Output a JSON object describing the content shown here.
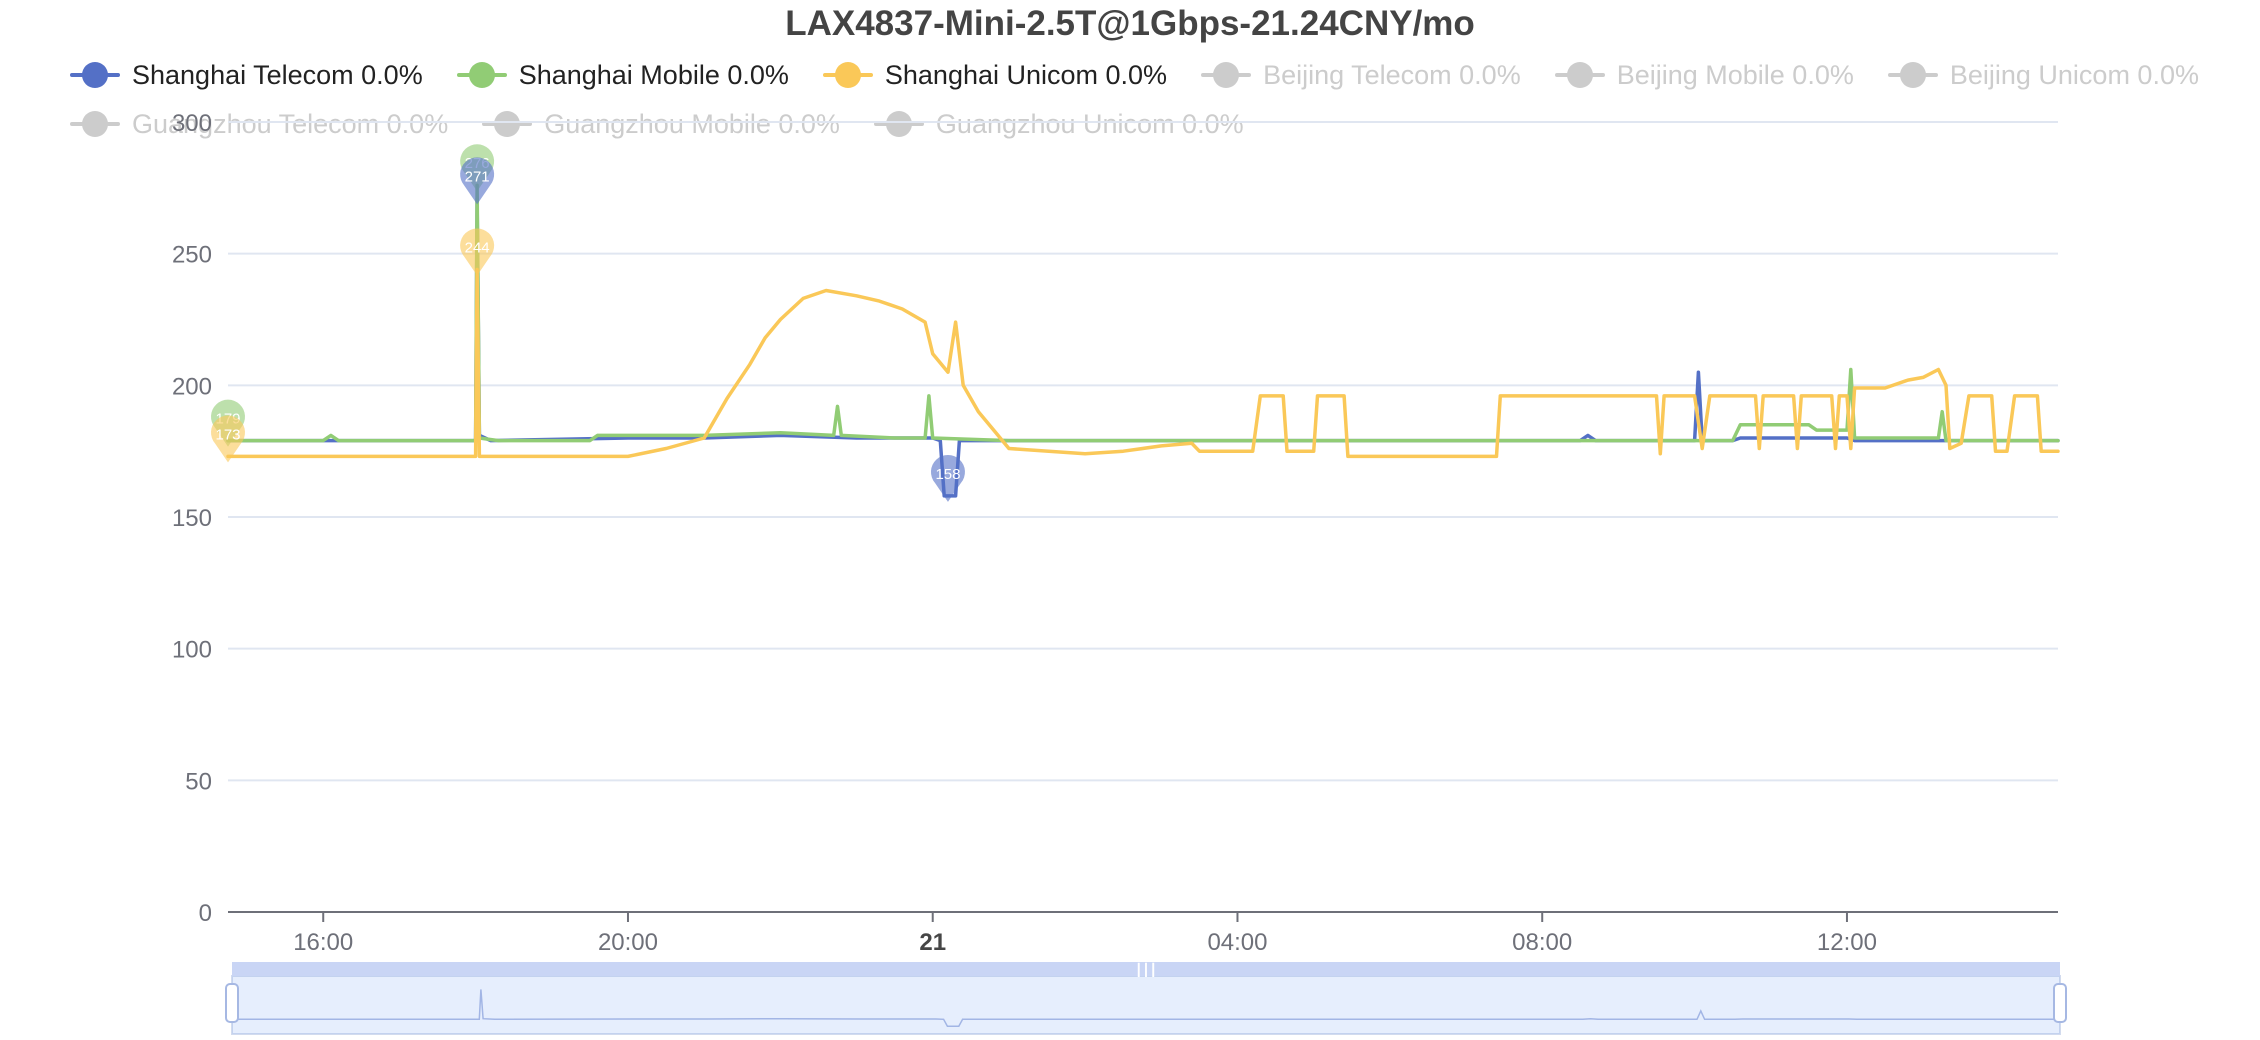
{
  "chart_data": {
    "type": "line",
    "title": "LAX4837-Mini-2.5T@1Gbps-21.24CNY/mo",
    "xlabel": "",
    "ylabel": "",
    "ylim": [
      0,
      300
    ],
    "y_ticks": [
      0,
      50,
      100,
      150,
      200,
      250,
      300
    ],
    "y_tick_labels": [
      "0",
      "50",
      "100",
      "150",
      "200",
      "250",
      "300"
    ],
    "x_range_hours": [
      14.75,
      38.77
    ],
    "x_ticks": [
      {
        "label": "16:00",
        "hour": 16,
        "bold": false
      },
      {
        "label": "20:00",
        "hour": 20,
        "bold": false
      },
      {
        "label": "21",
        "hour": 24,
        "bold": true
      },
      {
        "label": "04:00",
        "hour": 28,
        "bold": false
      },
      {
        "label": "08:00",
        "hour": 32,
        "bold": false
      },
      {
        "label": "12:00",
        "hour": 36,
        "bold": false
      }
    ],
    "grid": true,
    "legend_position": "top",
    "series": [
      {
        "name": "Shanghai Telecom 0.0%",
        "color": "#5470c6",
        "visible": true,
        "points": [
          [
            14.75,
            179
          ],
          [
            16.5,
            179
          ],
          [
            18.0,
            179
          ],
          [
            18.02,
            271
          ],
          [
            18.05,
            181
          ],
          [
            18.2,
            179
          ],
          [
            20.0,
            180
          ],
          [
            21.0,
            180
          ],
          [
            22.0,
            181
          ],
          [
            23.0,
            180
          ],
          [
            24.0,
            180
          ],
          [
            24.1,
            179
          ],
          [
            24.15,
            158
          ],
          [
            24.3,
            158
          ],
          [
            24.35,
            179
          ],
          [
            25.0,
            179
          ],
          [
            27.0,
            179
          ],
          [
            30.0,
            179
          ],
          [
            32.5,
            179
          ],
          [
            32.6,
            181
          ],
          [
            32.7,
            179
          ],
          [
            34.0,
            179
          ],
          [
            34.05,
            205
          ],
          [
            34.1,
            179
          ],
          [
            34.5,
            179
          ],
          [
            34.6,
            180
          ],
          [
            36.0,
            180
          ],
          [
            36.1,
            179
          ],
          [
            38.77,
            179
          ]
        ]
      },
      {
        "name": "Shanghai Mobile 0.0%",
        "color": "#91cc75",
        "visible": true,
        "points": [
          [
            14.75,
            179
          ],
          [
            16.0,
            179
          ],
          [
            16.1,
            181
          ],
          [
            16.2,
            179
          ],
          [
            18.0,
            179
          ],
          [
            18.02,
            276
          ],
          [
            18.05,
            180
          ],
          [
            18.3,
            179
          ],
          [
            19.5,
            179
          ],
          [
            19.6,
            181
          ],
          [
            21.0,
            181
          ],
          [
            22.0,
            182
          ],
          [
            22.7,
            181
          ],
          [
            22.75,
            192
          ],
          [
            22.8,
            181
          ],
          [
            23.5,
            180
          ],
          [
            23.9,
            180
          ],
          [
            23.95,
            196
          ],
          [
            24.0,
            180
          ],
          [
            25.0,
            179
          ],
          [
            28.0,
            179
          ],
          [
            30.0,
            179
          ],
          [
            32.0,
            179
          ],
          [
            34.5,
            179
          ],
          [
            34.6,
            185
          ],
          [
            35.5,
            185
          ],
          [
            35.6,
            183
          ],
          [
            36.0,
            183
          ],
          [
            36.05,
            206
          ],
          [
            36.1,
            180
          ],
          [
            37.2,
            180
          ],
          [
            37.25,
            190
          ],
          [
            37.3,
            179
          ],
          [
            38.77,
            179
          ]
        ]
      },
      {
        "name": "Shanghai Unicom 0.0%",
        "color": "#fac858",
        "visible": true,
        "points": [
          [
            14.75,
            173
          ],
          [
            18.0,
            173
          ],
          [
            18.02,
            244
          ],
          [
            18.05,
            173
          ],
          [
            20.0,
            173
          ],
          [
            20.5,
            176
          ],
          [
            21.0,
            180
          ],
          [
            21.3,
            195
          ],
          [
            21.6,
            208
          ],
          [
            21.8,
            218
          ],
          [
            22.0,
            225
          ],
          [
            22.3,
            233
          ],
          [
            22.6,
            236
          ],
          [
            23.0,
            234
          ],
          [
            23.3,
            232
          ],
          [
            23.6,
            229
          ],
          [
            23.9,
            224
          ],
          [
            24.0,
            212
          ],
          [
            24.2,
            205
          ],
          [
            24.3,
            224
          ],
          [
            24.4,
            200
          ],
          [
            24.6,
            190
          ],
          [
            24.8,
            183
          ],
          [
            25.0,
            176
          ],
          [
            26.0,
            174
          ],
          [
            26.5,
            175
          ],
          [
            27.0,
            177
          ],
          [
            27.4,
            178
          ],
          [
            27.5,
            175
          ],
          [
            28.2,
            175
          ],
          [
            28.3,
            196
          ],
          [
            28.6,
            196
          ],
          [
            28.65,
            175
          ],
          [
            29.0,
            175
          ],
          [
            29.05,
            196
          ],
          [
            29.4,
            196
          ],
          [
            29.45,
            173
          ],
          [
            31.4,
            173
          ],
          [
            31.45,
            196
          ],
          [
            33.5,
            196
          ],
          [
            33.55,
            174
          ],
          [
            33.6,
            196
          ],
          [
            34.0,
            196
          ],
          [
            34.1,
            176
          ],
          [
            34.2,
            196
          ],
          [
            34.8,
            196
          ],
          [
            34.85,
            176
          ],
          [
            34.9,
            196
          ],
          [
            35.3,
            196
          ],
          [
            35.35,
            176
          ],
          [
            35.4,
            196
          ],
          [
            35.8,
            196
          ],
          [
            35.85,
            176
          ],
          [
            35.9,
            196
          ],
          [
            36.0,
            196
          ],
          [
            36.05,
            176
          ],
          [
            36.1,
            199
          ],
          [
            36.5,
            199
          ],
          [
            36.8,
            202
          ],
          [
            37.0,
            203
          ],
          [
            37.2,
            206
          ],
          [
            37.3,
            200
          ],
          [
            37.35,
            176
          ],
          [
            37.5,
            178
          ],
          [
            37.6,
            196
          ],
          [
            37.9,
            196
          ],
          [
            37.95,
            175
          ],
          [
            38.1,
            175
          ],
          [
            38.2,
            196
          ],
          [
            38.5,
            196
          ],
          [
            38.55,
            175
          ],
          [
            38.77,
            175
          ]
        ]
      },
      {
        "name": "Beijing Telecom 0.0%",
        "color": "#cccccc",
        "visible": false,
        "points": []
      },
      {
        "name": "Beijing Mobile 0.0%",
        "color": "#cccccc",
        "visible": false,
        "points": []
      },
      {
        "name": "Beijing Unicom 0.0%",
        "color": "#cccccc",
        "visible": false,
        "points": []
      },
      {
        "name": "Guangzhou Telecom 0.0%",
        "color": "#cccccc",
        "visible": false,
        "points": []
      },
      {
        "name": "Guangzhou Mobile 0.0%",
        "color": "#cccccc",
        "visible": false,
        "points": []
      },
      {
        "name": "Guangzhou Unicom 0.0%",
        "color": "#cccccc",
        "visible": false,
        "points": []
      }
    ],
    "annotations": [
      {
        "series": "Shanghai Mobile 0.0%",
        "hour": 18.02,
        "value": 276,
        "label": "276",
        "kind": "max"
      },
      {
        "series": "Shanghai Telecom 0.0%",
        "hour": 18.02,
        "value": 271,
        "label": "271",
        "kind": "max"
      },
      {
        "series": "Shanghai Unicom 0.0%",
        "hour": 18.02,
        "value": 244,
        "label": "244",
        "kind": "max"
      },
      {
        "series": "Shanghai Mobile 0.0%",
        "hour": 14.75,
        "value": 179,
        "label": "179",
        "kind": "min"
      },
      {
        "series": "Shanghai Unicom 0.0%",
        "hour": 14.75,
        "value": 173,
        "label": "173",
        "kind": "min"
      },
      {
        "series": "Shanghai Telecom 0.0%",
        "hour": 24.2,
        "value": 158,
        "label": "158",
        "kind": "min"
      }
    ],
    "zoom_selection": [
      0,
      100
    ]
  }
}
